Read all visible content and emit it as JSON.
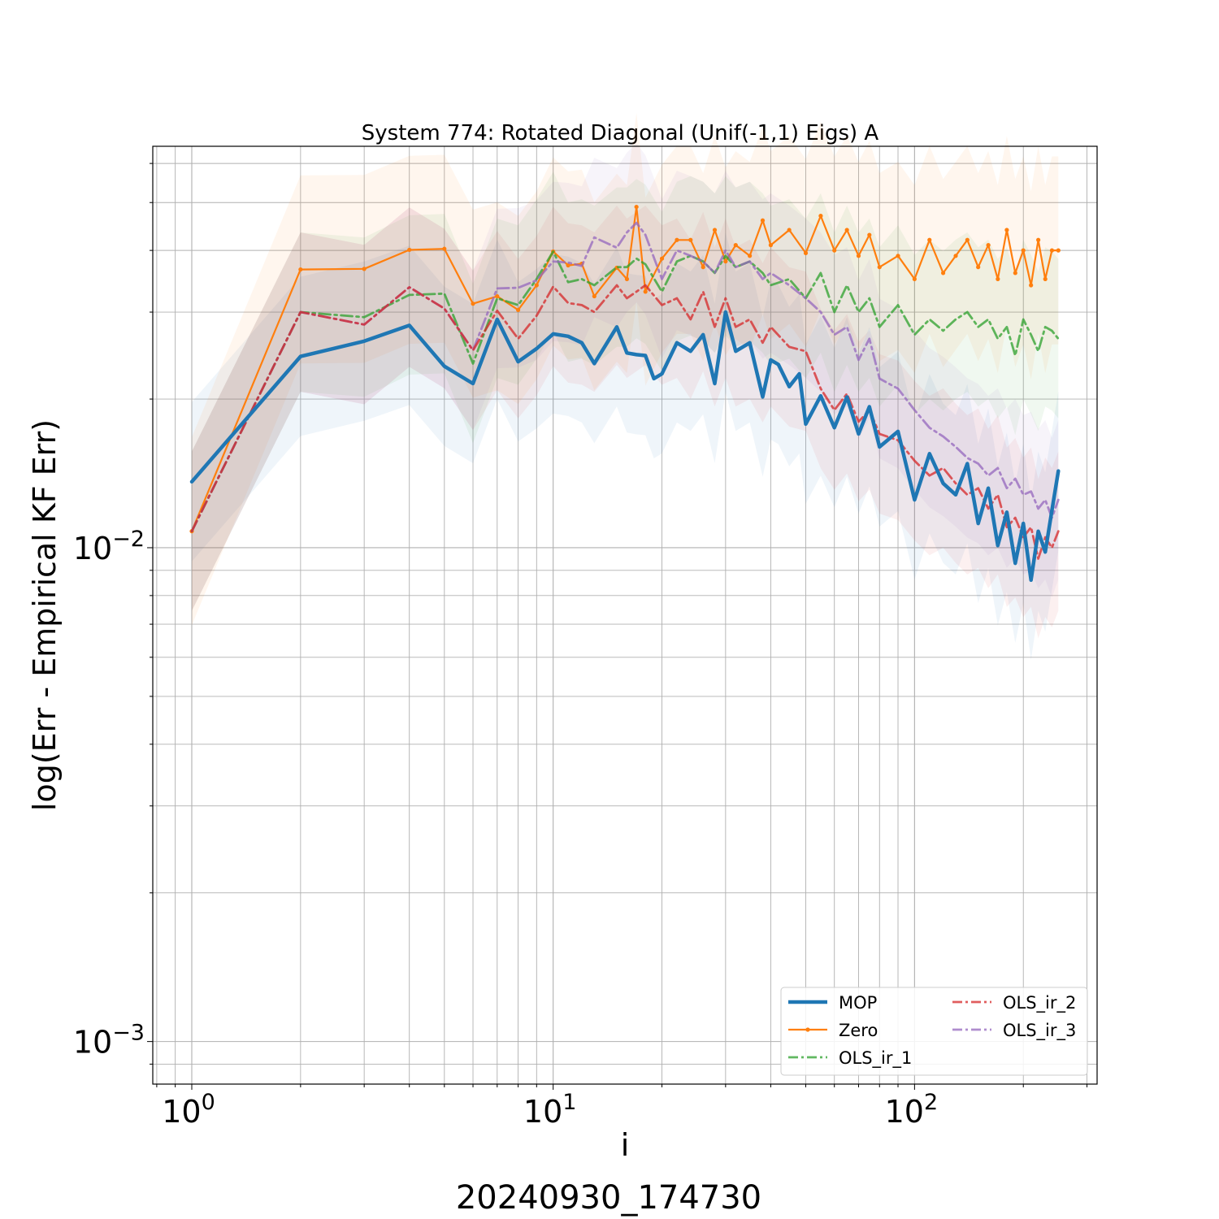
{
  "chart_data": {
    "type": "line",
    "title": "System 774: Rotated Diagonal (Unif(-1,1) Eigs) A",
    "xlabel": "i",
    "ylabel": "log(Err - Empirical KF Err)",
    "footer": "20240930_174730",
    "xscale": "log",
    "yscale": "log",
    "xlim": [
      0.78,
      320
    ],
    "ylim": [
      0.00082,
      0.065
    ],
    "grid": true,
    "legend_position": "lower-right",
    "x_ticks": [
      {
        "value": 1,
        "label": "10^0"
      },
      {
        "value": 10,
        "label": "10^1"
      },
      {
        "value": 100,
        "label": "10^2"
      }
    ],
    "y_ticks": [
      {
        "value": 0.001,
        "label": "10^-3"
      },
      {
        "value": 0.01,
        "label": "10^-2"
      }
    ],
    "series": [
      {
        "name": "MOP",
        "color": "#1f77b4",
        "style": "solid",
        "width": 4.5,
        "band_ratio": 1.45,
        "points": [
          [
            1,
            0.0136
          ],
          [
            2,
            0.0244
          ],
          [
            3,
            0.0262
          ],
          [
            4,
            0.0282
          ],
          [
            5,
            0.0233
          ],
          [
            6,
            0.0215
          ],
          [
            7,
            0.029
          ],
          [
            8,
            0.0238
          ],
          [
            9,
            0.0253
          ],
          [
            10,
            0.0271
          ],
          [
            11,
            0.0268
          ],
          [
            12,
            0.026
          ],
          [
            13,
            0.0236
          ],
          [
            15,
            0.028
          ],
          [
            16,
            0.0248
          ],
          [
            17,
            0.0246
          ],
          [
            18,
            0.0245
          ],
          [
            19,
            0.022
          ],
          [
            20,
            0.0225
          ],
          [
            22,
            0.026
          ],
          [
            24,
            0.025
          ],
          [
            26,
            0.027
          ],
          [
            28,
            0.0215
          ],
          [
            30,
            0.03
          ],
          [
            32,
            0.025
          ],
          [
            35,
            0.026
          ],
          [
            38,
            0.0202
          ],
          [
            40,
            0.024
          ],
          [
            42,
            0.0235
          ],
          [
            45,
            0.0212
          ],
          [
            48,
            0.0225
          ],
          [
            50,
            0.0178
          ],
          [
            55,
            0.0203
          ],
          [
            60,
            0.0175
          ],
          [
            65,
            0.0202
          ],
          [
            70,
            0.017
          ],
          [
            75,
            0.0193
          ],
          [
            80,
            0.016
          ],
          [
            90,
            0.0172
          ],
          [
            100,
            0.0125
          ],
          [
            110,
            0.0155
          ],
          [
            120,
            0.0135
          ],
          [
            130,
            0.0128
          ],
          [
            140,
            0.0148
          ],
          [
            150,
            0.0112
          ],
          [
            160,
            0.0132
          ],
          [
            170,
            0.0101
          ],
          [
            180,
            0.0118
          ],
          [
            190,
            0.0093
          ],
          [
            200,
            0.0112
          ],
          [
            210,
            0.0086
          ],
          [
            220,
            0.0108
          ],
          [
            230,
            0.0098
          ],
          [
            240,
            0.0119
          ],
          [
            250,
            0.0143
          ]
        ]
      },
      {
        "name": "Zero",
        "color": "#ff7f0e",
        "style": "solid-marker",
        "width": 2.2,
        "band_ratio": 1.55,
        "points": [
          [
            1,
            0.0108
          ],
          [
            2,
            0.0366
          ],
          [
            3,
            0.0367
          ],
          [
            4,
            0.0401
          ],
          [
            5,
            0.0403
          ],
          [
            6,
            0.0312
          ],
          [
            7,
            0.0323
          ],
          [
            8,
            0.0303
          ],
          [
            9,
            0.034
          ],
          [
            10,
            0.0398
          ],
          [
            11,
            0.0373
          ],
          [
            12,
            0.0376
          ],
          [
            13,
            0.0323
          ],
          [
            15,
            0.0369
          ],
          [
            16,
            0.035
          ],
          [
            17,
            0.049
          ],
          [
            18,
            0.033
          ],
          [
            20,
            0.0385
          ],
          [
            22,
            0.042
          ],
          [
            24,
            0.042
          ],
          [
            26,
            0.037
          ],
          [
            28,
            0.044
          ],
          [
            30,
            0.038
          ],
          [
            32,
            0.041
          ],
          [
            35,
            0.039
          ],
          [
            38,
            0.046
          ],
          [
            40,
            0.041
          ],
          [
            45,
            0.044
          ],
          [
            50,
            0.0395
          ],
          [
            55,
            0.047
          ],
          [
            60,
            0.04
          ],
          [
            65,
            0.044
          ],
          [
            70,
            0.039
          ],
          [
            75,
            0.043
          ],
          [
            80,
            0.037
          ],
          [
            90,
            0.039
          ],
          [
            100,
            0.035
          ],
          [
            110,
            0.042
          ],
          [
            120,
            0.036
          ],
          [
            130,
            0.039
          ],
          [
            140,
            0.042
          ],
          [
            150,
            0.037
          ],
          [
            160,
            0.041
          ],
          [
            170,
            0.035
          ],
          [
            180,
            0.044
          ],
          [
            190,
            0.036
          ],
          [
            200,
            0.04
          ],
          [
            210,
            0.034
          ],
          [
            220,
            0.042
          ],
          [
            230,
            0.035
          ],
          [
            240,
            0.04
          ],
          [
            250,
            0.04
          ]
        ]
      },
      {
        "name": "OLS_ir_1",
        "color": "#2ca02c",
        "style": "dashdot",
        "width": 2.8,
        "band_ratio": 1.45,
        "points": [
          [
            1,
            0.0108
          ],
          [
            2,
            0.03
          ],
          [
            3,
            0.0293
          ],
          [
            4,
            0.0325
          ],
          [
            5,
            0.0327
          ],
          [
            6,
            0.0236
          ],
          [
            7,
            0.032
          ],
          [
            8,
            0.031
          ],
          [
            9,
            0.035
          ],
          [
            10,
            0.0398
          ],
          [
            11,
            0.0345
          ],
          [
            12,
            0.035
          ],
          [
            13,
            0.034
          ],
          [
            15,
            0.037
          ],
          [
            16,
            0.037
          ],
          [
            17,
            0.0385
          ],
          [
            18,
            0.0375
          ],
          [
            20,
            0.033
          ],
          [
            22,
            0.038
          ],
          [
            24,
            0.039
          ],
          [
            26,
            0.038
          ],
          [
            28,
            0.036
          ],
          [
            30,
            0.039
          ],
          [
            32,
            0.037
          ],
          [
            35,
            0.038
          ],
          [
            38,
            0.036
          ],
          [
            40,
            0.034
          ],
          [
            45,
            0.035
          ],
          [
            50,
            0.032
          ],
          [
            55,
            0.036
          ],
          [
            60,
            0.03
          ],
          [
            65,
            0.034
          ],
          [
            70,
            0.03
          ],
          [
            75,
            0.032
          ],
          [
            80,
            0.028
          ],
          [
            90,
            0.031
          ],
          [
            100,
            0.027
          ],
          [
            110,
            0.029
          ],
          [
            120,
            0.0275
          ],
          [
            130,
            0.029
          ],
          [
            140,
            0.03
          ],
          [
            150,
            0.028
          ],
          [
            160,
            0.029
          ],
          [
            170,
            0.0265
          ],
          [
            180,
            0.028
          ],
          [
            190,
            0.0245
          ],
          [
            200,
            0.029
          ],
          [
            210,
            0.027
          ],
          [
            220,
            0.025
          ],
          [
            230,
            0.028
          ],
          [
            240,
            0.0275
          ],
          [
            250,
            0.0265
          ]
        ]
      },
      {
        "name": "OLS_ir_2",
        "color": "#d62728",
        "style": "dashdot",
        "width": 2.8,
        "band_ratio": 1.45,
        "points": [
          [
            1,
            0.0108
          ],
          [
            2,
            0.03
          ],
          [
            3,
            0.0283
          ],
          [
            4,
            0.0337
          ],
          [
            5,
            0.0305
          ],
          [
            6,
            0.0251
          ],
          [
            7,
            0.0302
          ],
          [
            8,
            0.0265
          ],
          [
            9,
            0.0295
          ],
          [
            10,
            0.0338
          ],
          [
            11,
            0.0313
          ],
          [
            12,
            0.031
          ],
          [
            13,
            0.03
          ],
          [
            15,
            0.034
          ],
          [
            16,
            0.032
          ],
          [
            17,
            0.033
          ],
          [
            18,
            0.034
          ],
          [
            20,
            0.031
          ],
          [
            22,
            0.032
          ],
          [
            24,
            0.029
          ],
          [
            26,
            0.033
          ],
          [
            28,
            0.028
          ],
          [
            30,
            0.032
          ],
          [
            32,
            0.028
          ],
          [
            35,
            0.029
          ],
          [
            38,
            0.026
          ],
          [
            40,
            0.028
          ],
          [
            45,
            0.0255
          ],
          [
            50,
            0.025
          ],
          [
            55,
            0.021
          ],
          [
            60,
            0.019
          ],
          [
            65,
            0.0205
          ],
          [
            70,
            0.018
          ],
          [
            75,
            0.019
          ],
          [
            80,
            0.017
          ],
          [
            90,
            0.0165
          ],
          [
            100,
            0.015
          ],
          [
            110,
            0.014
          ],
          [
            120,
            0.0145
          ],
          [
            130,
            0.0135
          ],
          [
            140,
            0.0128
          ],
          [
            150,
            0.0132
          ],
          [
            160,
            0.012
          ],
          [
            170,
            0.0128
          ],
          [
            180,
            0.011
          ],
          [
            190,
            0.0115
          ],
          [
            200,
            0.0105
          ],
          [
            210,
            0.011
          ],
          [
            220,
            0.0095
          ],
          [
            230,
            0.0105
          ],
          [
            240,
            0.01
          ],
          [
            250,
            0.0108
          ]
        ]
      },
      {
        "name": "OLS_ir_3",
        "color": "#9467bd",
        "style": "dashdot",
        "width": 2.8,
        "band_ratio": 1.45,
        "points": [
          [
            1,
            0.0108
          ],
          [
            2,
            0.03
          ],
          [
            3,
            0.0283
          ],
          [
            4,
            0.0337
          ],
          [
            5,
            0.0305
          ],
          [
            6,
            0.0251
          ],
          [
            7,
            0.0335
          ],
          [
            8,
            0.0336
          ],
          [
            9,
            0.0348
          ],
          [
            10,
            0.038
          ],
          [
            11,
            0.0378
          ],
          [
            12,
            0.0372
          ],
          [
            13,
            0.0425
          ],
          [
            15,
            0.0405
          ],
          [
            16,
            0.0435
          ],
          [
            17,
            0.0455
          ],
          [
            18,
            0.043
          ],
          [
            20,
            0.035
          ],
          [
            22,
            0.04
          ],
          [
            24,
            0.039
          ],
          [
            26,
            0.038
          ],
          [
            28,
            0.036
          ],
          [
            30,
            0.04
          ],
          [
            32,
            0.037
          ],
          [
            35,
            0.038
          ],
          [
            38,
            0.035
          ],
          [
            40,
            0.036
          ],
          [
            45,
            0.034
          ],
          [
            50,
            0.032
          ],
          [
            55,
            0.03
          ],
          [
            60,
            0.027
          ],
          [
            65,
            0.028
          ],
          [
            70,
            0.024
          ],
          [
            75,
            0.0265
          ],
          [
            80,
            0.022
          ],
          [
            90,
            0.021
          ],
          [
            100,
            0.019
          ],
          [
            110,
            0.0175
          ],
          [
            120,
            0.0168
          ],
          [
            130,
            0.016
          ],
          [
            140,
            0.0152
          ],
          [
            150,
            0.0148
          ],
          [
            160,
            0.014
          ],
          [
            170,
            0.0145
          ],
          [
            180,
            0.0132
          ],
          [
            190,
            0.0138
          ],
          [
            200,
            0.0128
          ],
          [
            210,
            0.013
          ],
          [
            220,
            0.012
          ],
          [
            230,
            0.0125
          ],
          [
            240,
            0.0115
          ],
          [
            250,
            0.0125
          ]
        ]
      }
    ]
  }
}
